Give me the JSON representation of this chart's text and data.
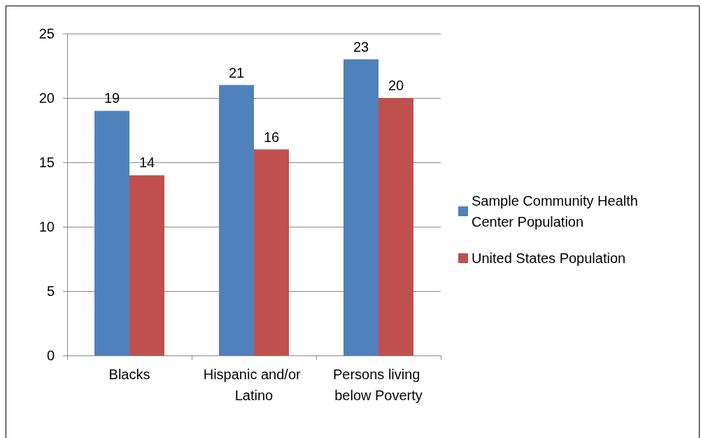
{
  "chart_data": {
    "type": "bar",
    "categories": [
      "Blacks",
      "Hispanic and/or Latino",
      "Persons living below Poverty"
    ],
    "series": [
      {
        "name": "Sample Community Health Center Population",
        "color": "#4f81bd",
        "values": [
          19,
          21,
          23
        ]
      },
      {
        "name": "United States Population",
        "color": "#c0504d",
        "values": [
          14,
          16,
          20
        ]
      }
    ],
    "ylim": [
      0,
      25
    ],
    "yticks": [
      0,
      5,
      10,
      15,
      20,
      25
    ],
    "grid": "y",
    "legend": "right",
    "data_labels": true
  }
}
